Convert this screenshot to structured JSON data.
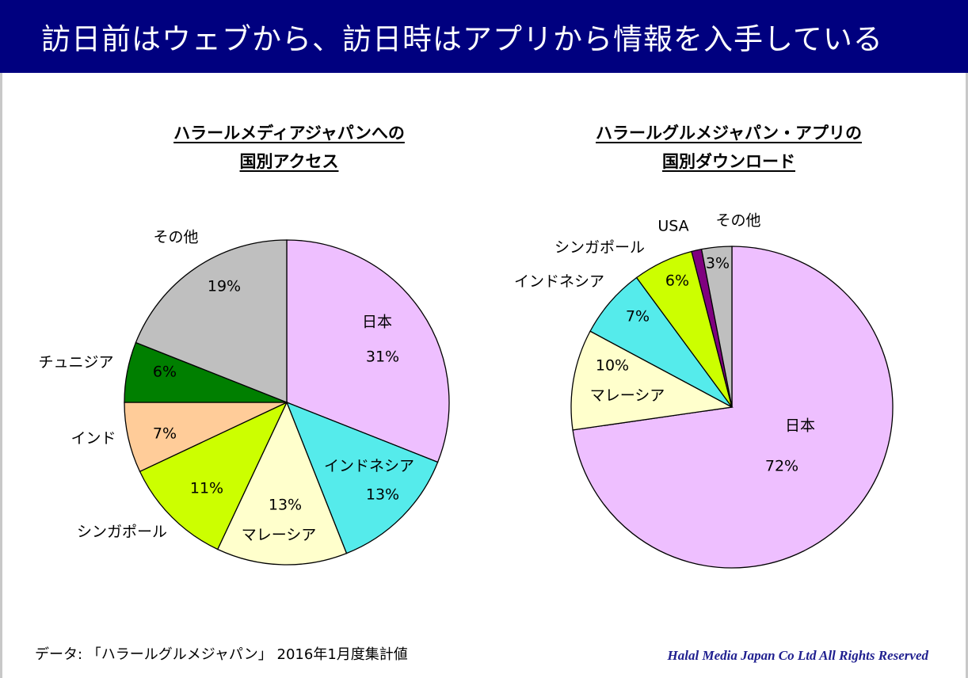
{
  "header": {
    "title": "訪日前はウェブから、訪日時はアプリから情報を入手している"
  },
  "colors": {
    "banner": "#00007f"
  },
  "chart_data": [
    {
      "type": "pie",
      "title_lines": [
        "ハラールメディアジャパンへの",
        "国別アクセス"
      ],
      "slices": [
        {
          "label": "日本",
          "value": 31,
          "value_label": "31%",
          "color": "#eebfff"
        },
        {
          "label": "インドネシア",
          "value": 13,
          "value_label": "13%",
          "color": "#55ebeb"
        },
        {
          "label": "マレーシア",
          "value": 13,
          "value_label": "13%",
          "color": "#ffffcc"
        },
        {
          "label": "シンガポール",
          "value": 11,
          "value_label": "11%",
          "color": "#ccff00"
        },
        {
          "label": "インド",
          "value": 7,
          "value_label": "7%",
          "color": "#ffcc99"
        },
        {
          "label": "チュニジア",
          "value": 6,
          "value_label": "6%",
          "color": "#007f00"
        },
        {
          "label": "その他",
          "value": 19,
          "value_label": "19%",
          "color": "#bfbfbf"
        }
      ]
    },
    {
      "type": "pie",
      "title_lines": [
        "ハラールグルメジャパン・アプリの",
        "国別ダウンロード"
      ],
      "slices": [
        {
          "label": "日本",
          "value": 72,
          "value_label": "72%",
          "color": "#eebfff"
        },
        {
          "label": "マレーシア",
          "value": 10,
          "value_label": "10%",
          "color": "#ffffcc"
        },
        {
          "label": "インドネシア",
          "value": 7,
          "value_label": "7%",
          "color": "#55ebeb"
        },
        {
          "label": "シンガポール",
          "value": 6,
          "value_label": "6%",
          "color": "#ccff00"
        },
        {
          "label": "USA",
          "value": 1,
          "value_label": "",
          "color": "#7f007f"
        },
        {
          "label": "その他",
          "value": 3,
          "value_label": "3%",
          "color": "#bfbfbf"
        }
      ]
    }
  ],
  "footer": {
    "source": "データ: 「ハラールグルメジャパン」 2016年1月度集計値",
    "copyright": "Halal Media Japan Co Ltd All Rights Reserved"
  }
}
